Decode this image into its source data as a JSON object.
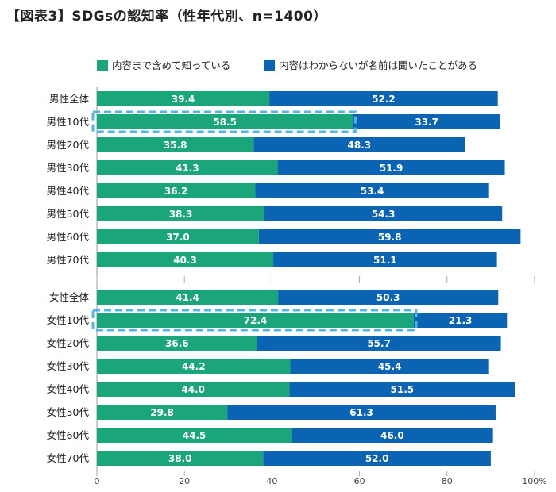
{
  "chart_data": {
    "type": "bar",
    "orientation": "horizontal",
    "stacked": true,
    "title": "【図表3】SDGsの認知率（性年代別、n=1400）",
    "legend": {
      "placement": "top",
      "entries": [
        {
          "name": "内容まで含めて知っている",
          "color": "#1aa57a"
        },
        {
          "name": "内容はわからないが名前は聞いたことがある",
          "color": "#0b63b4"
        }
      ]
    },
    "xaxis": {
      "range": [
        0,
        100
      ],
      "ticks": [
        "0",
        "20",
        "40",
        "60",
        "80",
        "100%"
      ]
    },
    "grid": false,
    "highlighted_categories": [
      "男性10代",
      "女性10代"
    ],
    "groups": [
      {
        "categories": [
          "男性全体",
          "男性10代",
          "男性20代",
          "男性30代",
          "男性40代",
          "男性50代",
          "男性60代",
          "男性70代"
        ],
        "series": [
          {
            "name": "内容まで含めて知っている",
            "values": [
              39.4,
              58.5,
              35.8,
              41.3,
              36.2,
              38.3,
              37.0,
              40.3
            ]
          },
          {
            "name": "内容はわからないが名前は聞いたことがある",
            "values": [
              52.2,
              33.7,
              48.3,
              51.9,
              53.4,
              54.3,
              59.8,
              51.1
            ]
          }
        ]
      },
      {
        "categories": [
          "女性全体",
          "女性10代",
          "女性20代",
          "女性30代",
          "女性40代",
          "女性50代",
          "女性60代",
          "女性70代"
        ],
        "series": [
          {
            "name": "内容まで含めて知っている",
            "values": [
              41.4,
              72.4,
              36.6,
              44.2,
              44.0,
              29.8,
              44.5,
              38.0
            ]
          },
          {
            "name": "内容はわからないが名前は聞いたことがある",
            "values": [
              50.3,
              21.3,
              55.7,
              45.4,
              51.5,
              61.3,
              46.0,
              52.0
            ]
          }
        ]
      }
    ],
    "colors": {
      "known": "#1aa57a",
      "heard": "#0b63b4",
      "highlight": "#4db8e8"
    }
  }
}
